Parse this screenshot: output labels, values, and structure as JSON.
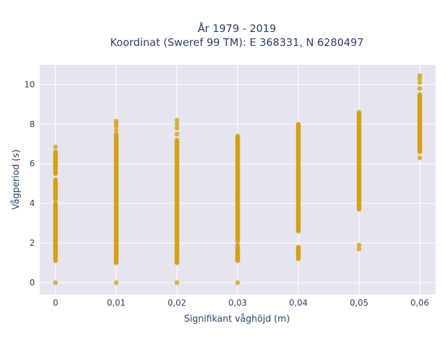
{
  "chart_data": {
    "type": "scatter",
    "title_line1": "År 1979 - 2019",
    "title_line2": "Koordinat (Sweref 99 TM): E 368331, N 6280497",
    "xlabel": "Signifikant våghöjd (m)",
    "ylabel": "Vågperiod (s)",
    "x_ticks": [
      "0",
      "0,01",
      "0,02",
      "0,03",
      "0,04",
      "0,05",
      "0,06"
    ],
    "y_ticks": [
      "0",
      "2",
      "4",
      "6",
      "8",
      "10"
    ],
    "xlim": [
      -0.0026,
      0.0626
    ],
    "ylim": [
      -0.6,
      11
    ],
    "grid": true,
    "marker_color": "#D4A017",
    "plot_bg": "#E5E5EF",
    "columns": [
      {
        "x": 0.0,
        "zero": true,
        "segments": [
          [
            1.1,
            4.0
          ],
          [
            4.2,
            5.2
          ],
          [
            5.5,
            6.6
          ]
        ],
        "extra": [
          6.85,
          4.5,
          5.0
        ]
      },
      {
        "x": 0.01,
        "zero": true,
        "segments": [
          [
            1.0,
            7.5
          ]
        ],
        "extra": [
          7.7,
          7.9,
          8.05,
          8.15
        ]
      },
      {
        "x": 0.02,
        "zero": true,
        "segments": [
          [
            1.0,
            7.2
          ]
        ],
        "extra": [
          7.5,
          7.8,
          8.0,
          8.2
        ]
      },
      {
        "x": 0.03,
        "zero": true,
        "segments": [
          [
            1.1,
            1.9
          ],
          [
            2.1,
            7.4
          ]
        ],
        "extra": []
      },
      {
        "x": 0.04,
        "zero": false,
        "segments": [
          [
            1.2,
            1.8
          ],
          [
            2.6,
            8.0
          ]
        ],
        "extra": []
      },
      {
        "x": 0.05,
        "zero": false,
        "segments": [
          [
            3.7,
            8.6
          ]
        ],
        "extra": [
          1.7,
          1.9
        ]
      },
      {
        "x": 0.06,
        "zero": false,
        "segments": [
          [
            6.6,
            9.5
          ]
        ],
        "extra": [
          6.3,
          9.8,
          10.1,
          10.3,
          10.45
        ]
      }
    ]
  }
}
